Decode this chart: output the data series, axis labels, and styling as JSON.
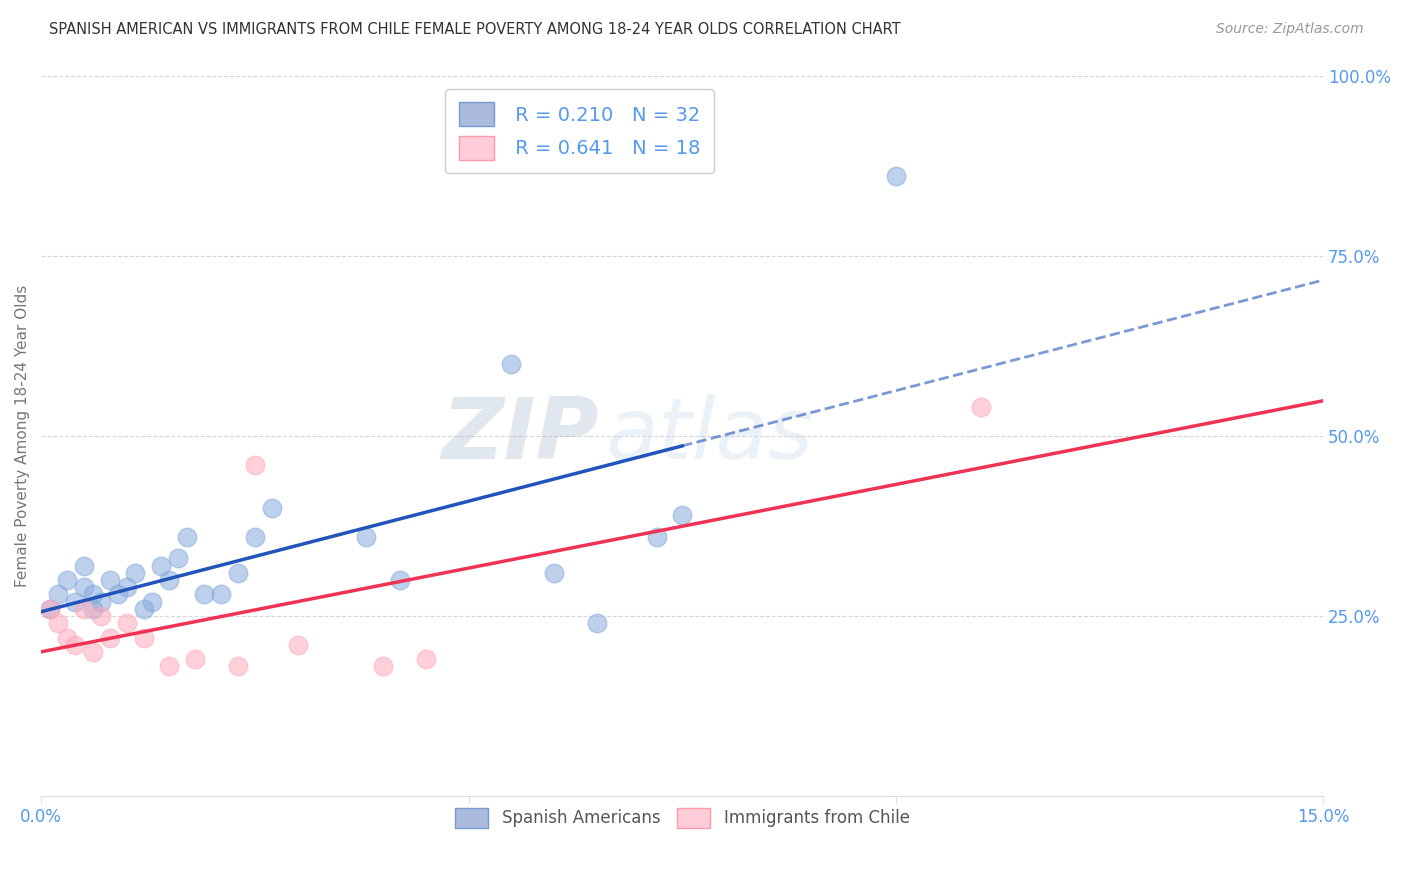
{
  "title": "SPANISH AMERICAN VS IMMIGRANTS FROM CHILE FEMALE POVERTY AMONG 18-24 YEAR OLDS CORRELATION CHART",
  "source": "Source: ZipAtlas.com",
  "ylabel": "Female Poverty Among 18-24 Year Olds",
  "xlim": [
    0.0,
    0.15
  ],
  "ylim": [
    0.0,
    1.0
  ],
  "background_color": "#ffffff",
  "grid_color": "#cccccc",
  "blue_R": "0.210",
  "blue_N": "32",
  "pink_R": "0.641",
  "pink_N": "18",
  "blue_scatter_color": "#88aadd",
  "pink_scatter_color": "#ffaabb",
  "blue_line_color": "#2255bb",
  "pink_line_color": "#ee3355",
  "axis_tick_color": "#5599ee",
  "title_color": "#333333",
  "source_color": "#999999",
  "watermark_color": "#ccddf0",
  "ylabel_color": "#777777",
  "spanish_x": [
    0.001,
    0.002,
    0.003,
    0.004,
    0.005,
    0.005,
    0.006,
    0.006,
    0.007,
    0.008,
    0.009,
    0.01,
    0.011,
    0.012,
    0.013,
    0.014,
    0.015,
    0.016,
    0.017,
    0.019,
    0.021,
    0.023,
    0.025,
    0.027,
    0.038,
    0.042,
    0.055,
    0.06,
    0.065,
    0.072,
    0.075,
    0.1
  ],
  "spanish_y": [
    0.26,
    0.28,
    0.3,
    0.27,
    0.29,
    0.32,
    0.26,
    0.28,
    0.27,
    0.3,
    0.28,
    0.29,
    0.31,
    0.26,
    0.27,
    0.32,
    0.3,
    0.33,
    0.36,
    0.28,
    0.28,
    0.31,
    0.36,
    0.4,
    0.36,
    0.3,
    0.6,
    0.31,
    0.24,
    0.36,
    0.39,
    0.86
  ],
  "chile_x": [
    0.001,
    0.002,
    0.003,
    0.004,
    0.005,
    0.006,
    0.007,
    0.008,
    0.01,
    0.012,
    0.015,
    0.018,
    0.023,
    0.025,
    0.03,
    0.04,
    0.045,
    0.11
  ],
  "chile_y": [
    0.26,
    0.24,
    0.22,
    0.21,
    0.26,
    0.2,
    0.25,
    0.22,
    0.24,
    0.22,
    0.18,
    0.19,
    0.18,
    0.46,
    0.21,
    0.18,
    0.19,
    0.54
  ],
  "legend_labels": [
    "Spanish Americans",
    "Immigrants from Chile"
  ],
  "watermark_zip": "ZIP",
  "watermark_atlas": "atlas"
}
